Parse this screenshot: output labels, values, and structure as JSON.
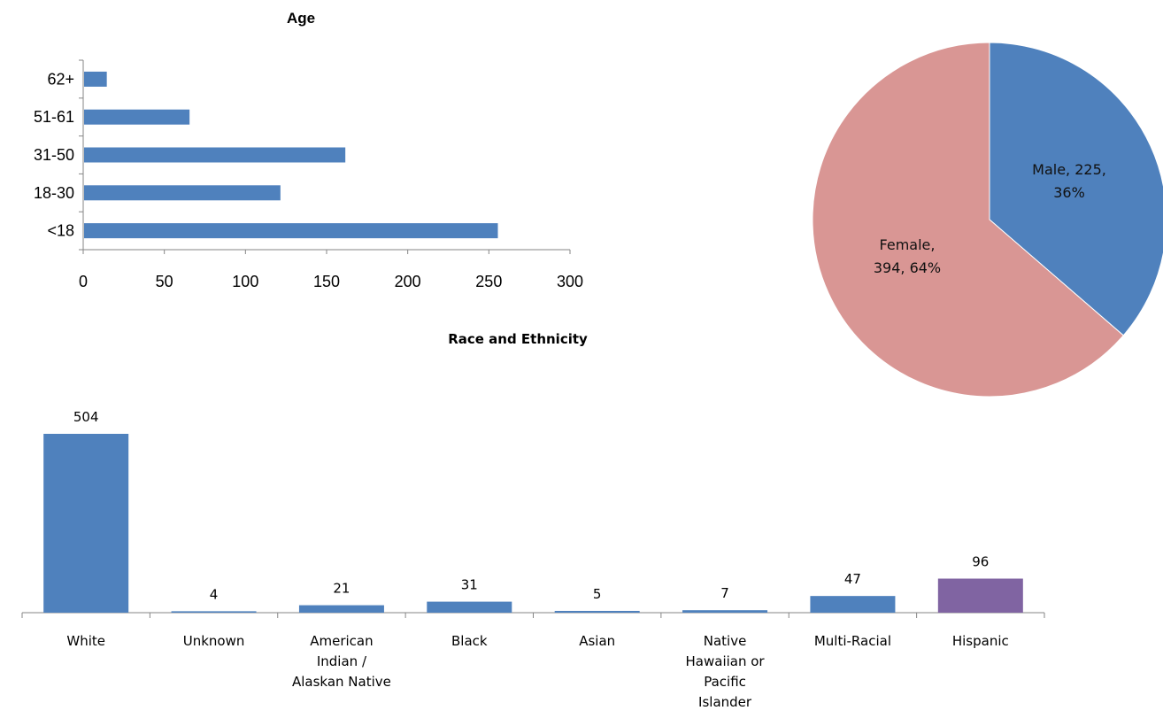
{
  "chart_data": [
    {
      "type": "bar",
      "orientation": "horizontal",
      "title": "Age",
      "categories": [
        "62+",
        "51-61",
        "31-50",
        "18-30",
        "<18"
      ],
      "values": [
        14,
        65,
        161,
        121,
        255
      ],
      "xlim": [
        0,
        300
      ],
      "xticks": [
        "0",
        "50",
        "100",
        "150",
        "200",
        "250",
        "300"
      ],
      "color": "#4f81bd",
      "grid": false
    },
    {
      "type": "pie",
      "title": "",
      "slices": [
        {
          "label": "Male, 225, 36%",
          "value": 225,
          "color": "#4f81bd"
        },
        {
          "label": "Female, 394, 64%",
          "value": 394,
          "color": "#d99694"
        }
      ]
    },
    {
      "type": "bar",
      "orientation": "vertical",
      "title": "Race  and Ethnicity",
      "categories": [
        "White",
        "Unknown",
        "American Indian / Alaskan Native",
        "Black",
        "Asian",
        "Native Hawaiian or Pacific Islander",
        "Multi-Racial",
        "Hispanic"
      ],
      "values": [
        504,
        4,
        21,
        31,
        5,
        7,
        47,
        96
      ],
      "data_labels": [
        "504",
        "4",
        "21",
        "31",
        "5",
        "7",
        "47",
        "96"
      ],
      "colors": [
        "#4f81bd",
        "#4f81bd",
        "#4f81bd",
        "#4f81bd",
        "#4f81bd",
        "#4f81bd",
        "#4f81bd",
        "#8064a2"
      ],
      "ylim": [
        0,
        504
      ],
      "grid": false
    }
  ]
}
